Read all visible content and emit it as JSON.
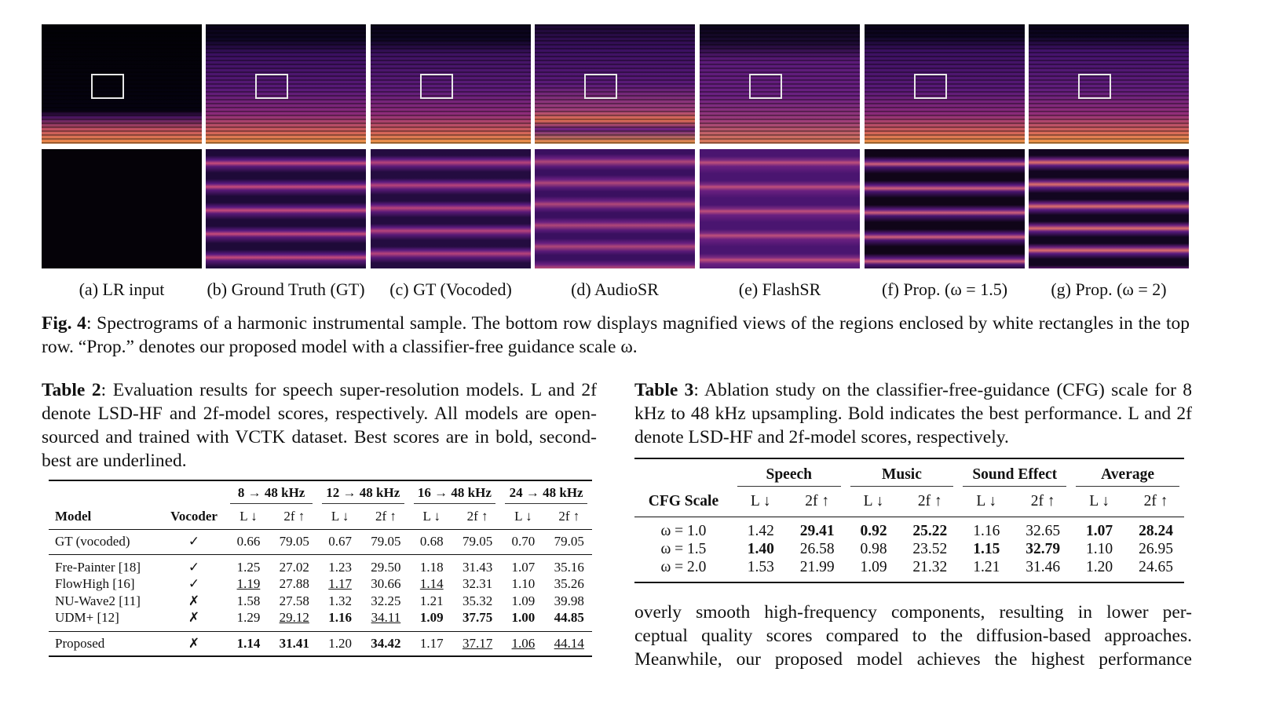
{
  "figure": {
    "panels": [
      "(a) LR input",
      "(b) Ground Truth (GT)",
      "(c) GT (Vocoded)",
      "(d) AudioSR",
      "(e) FlashSR",
      "(f) Prop. (ω = 1.5)",
      "(g) Prop. (ω = 2)"
    ],
    "label": "Fig. 4",
    "caption": ": Spectrograms of a harmonic instrumental sample. The bottom row displays magnified views of the regions enclosed by white rectangles in the top row. “Prop.” denotes our proposed model with a classifier-free guidance scale ω."
  },
  "table2": {
    "label": "Table 2",
    "caption": ": Evaluation results for speech super-resolution models. L and 2f denote LSD-HF and 2f-model scores, respectively. All models are open-sourced and trained with VCTK dataset. Best scores are in bold, second-best are underlined.",
    "groups": [
      "8 → 48 kHz",
      "12 → 48 kHz",
      "16 → 48 kHz",
      "24 → 48 kHz"
    ],
    "columns": [
      "Model",
      "Vocoder",
      "L ↓",
      "2f ↑",
      "L ↓",
      "2f ↑",
      "L ↓",
      "2f ↑",
      "L ↓",
      "2f ↑"
    ],
    "row_groups": [
      [
        [
          "GT (vocoded)",
          "✓",
          "0.66",
          "79.05",
          "0.67",
          "79.05",
          "0.68",
          "79.05",
          "0.70",
          "79.05"
        ]
      ],
      [
        [
          "Fre-Painter [18]",
          "✓",
          "1.25",
          "27.02",
          "1.23",
          "29.50",
          "1.18",
          "31.43",
          "1.07",
          "35.16"
        ],
        [
          "FlowHigh [16]",
          "✓",
          {
            "text": "1.19",
            "underline": true
          },
          "27.88",
          {
            "text": "1.17",
            "underline": true
          },
          "30.66",
          {
            "text": "1.14",
            "underline": true
          },
          "32.31",
          "1.10",
          "35.26"
        ],
        [
          "NU-Wave2 [11]",
          "✗",
          "1.58",
          "27.58",
          "1.32",
          "32.25",
          "1.21",
          "35.32",
          "1.09",
          "39.98"
        ],
        [
          "UDM+ [12]",
          "✗",
          "1.29",
          {
            "text": "29.12",
            "underline": true
          },
          {
            "text": "1.16",
            "bold": true
          },
          {
            "text": "34.11",
            "underline": true
          },
          {
            "text": "1.09",
            "bold": true
          },
          {
            "text": "37.75",
            "bold": true
          },
          {
            "text": "1.00",
            "bold": true
          },
          {
            "text": "44.85",
            "bold": true
          }
        ]
      ],
      [
        [
          "Proposed",
          "✗",
          {
            "text": "1.14",
            "bold": true
          },
          {
            "text": "31.41",
            "bold": true
          },
          "1.20",
          {
            "text": "34.42",
            "bold": true
          },
          "1.17",
          {
            "text": "37.17",
            "underline": true
          },
          {
            "text": "1.06",
            "underline": true
          },
          {
            "text": "44.14",
            "underline": true
          }
        ]
      ]
    ]
  },
  "table3": {
    "label": "Table 3",
    "caption": ": Ablation study on the classifier-free-guidance (CFG) scale for 8 kHz to 48 kHz upsampling. Bold indicates the best performance. L and 2f denote LSD-HF and 2f-model scores, respectively.",
    "first_column": "CFG Scale",
    "groups": [
      "Speech",
      "Music",
      "Sound Effect",
      "Average"
    ],
    "columns": [
      "L ↓",
      "2f ↑",
      "L ↓",
      "2f ↑",
      "L ↓",
      "2f ↑",
      "L ↓",
      "2f ↑"
    ],
    "rows": [
      [
        "ω = 1.0",
        "1.42",
        {
          "text": "29.41",
          "bold": true
        },
        {
          "text": "0.92",
          "bold": true
        },
        {
          "text": "25.22",
          "bold": true
        },
        "1.16",
        "32.65",
        {
          "text": "1.07",
          "bold": true
        },
        {
          "text": "28.24",
          "bold": true
        }
      ],
      [
        "ω = 1.5",
        {
          "text": "1.40",
          "bold": true
        },
        "26.58",
        "0.98",
        "23.52",
        {
          "text": "1.15",
          "bold": true
        },
        {
          "text": "32.79",
          "bold": true
        },
        "1.10",
        "26.95"
      ],
      [
        "ω = 2.0",
        "1.53",
        "21.99",
        "1.09",
        "21.32",
        "1.21",
        "31.46",
        "1.20",
        "24.65"
      ]
    ]
  },
  "body_lines": [
    "overly smooth high-frequency components, resulting in lower per-",
    "ceptual quality scores compared to the diffusion-based approaches.",
    "Meanwhile, our proposed model achieves the highest performance"
  ]
}
